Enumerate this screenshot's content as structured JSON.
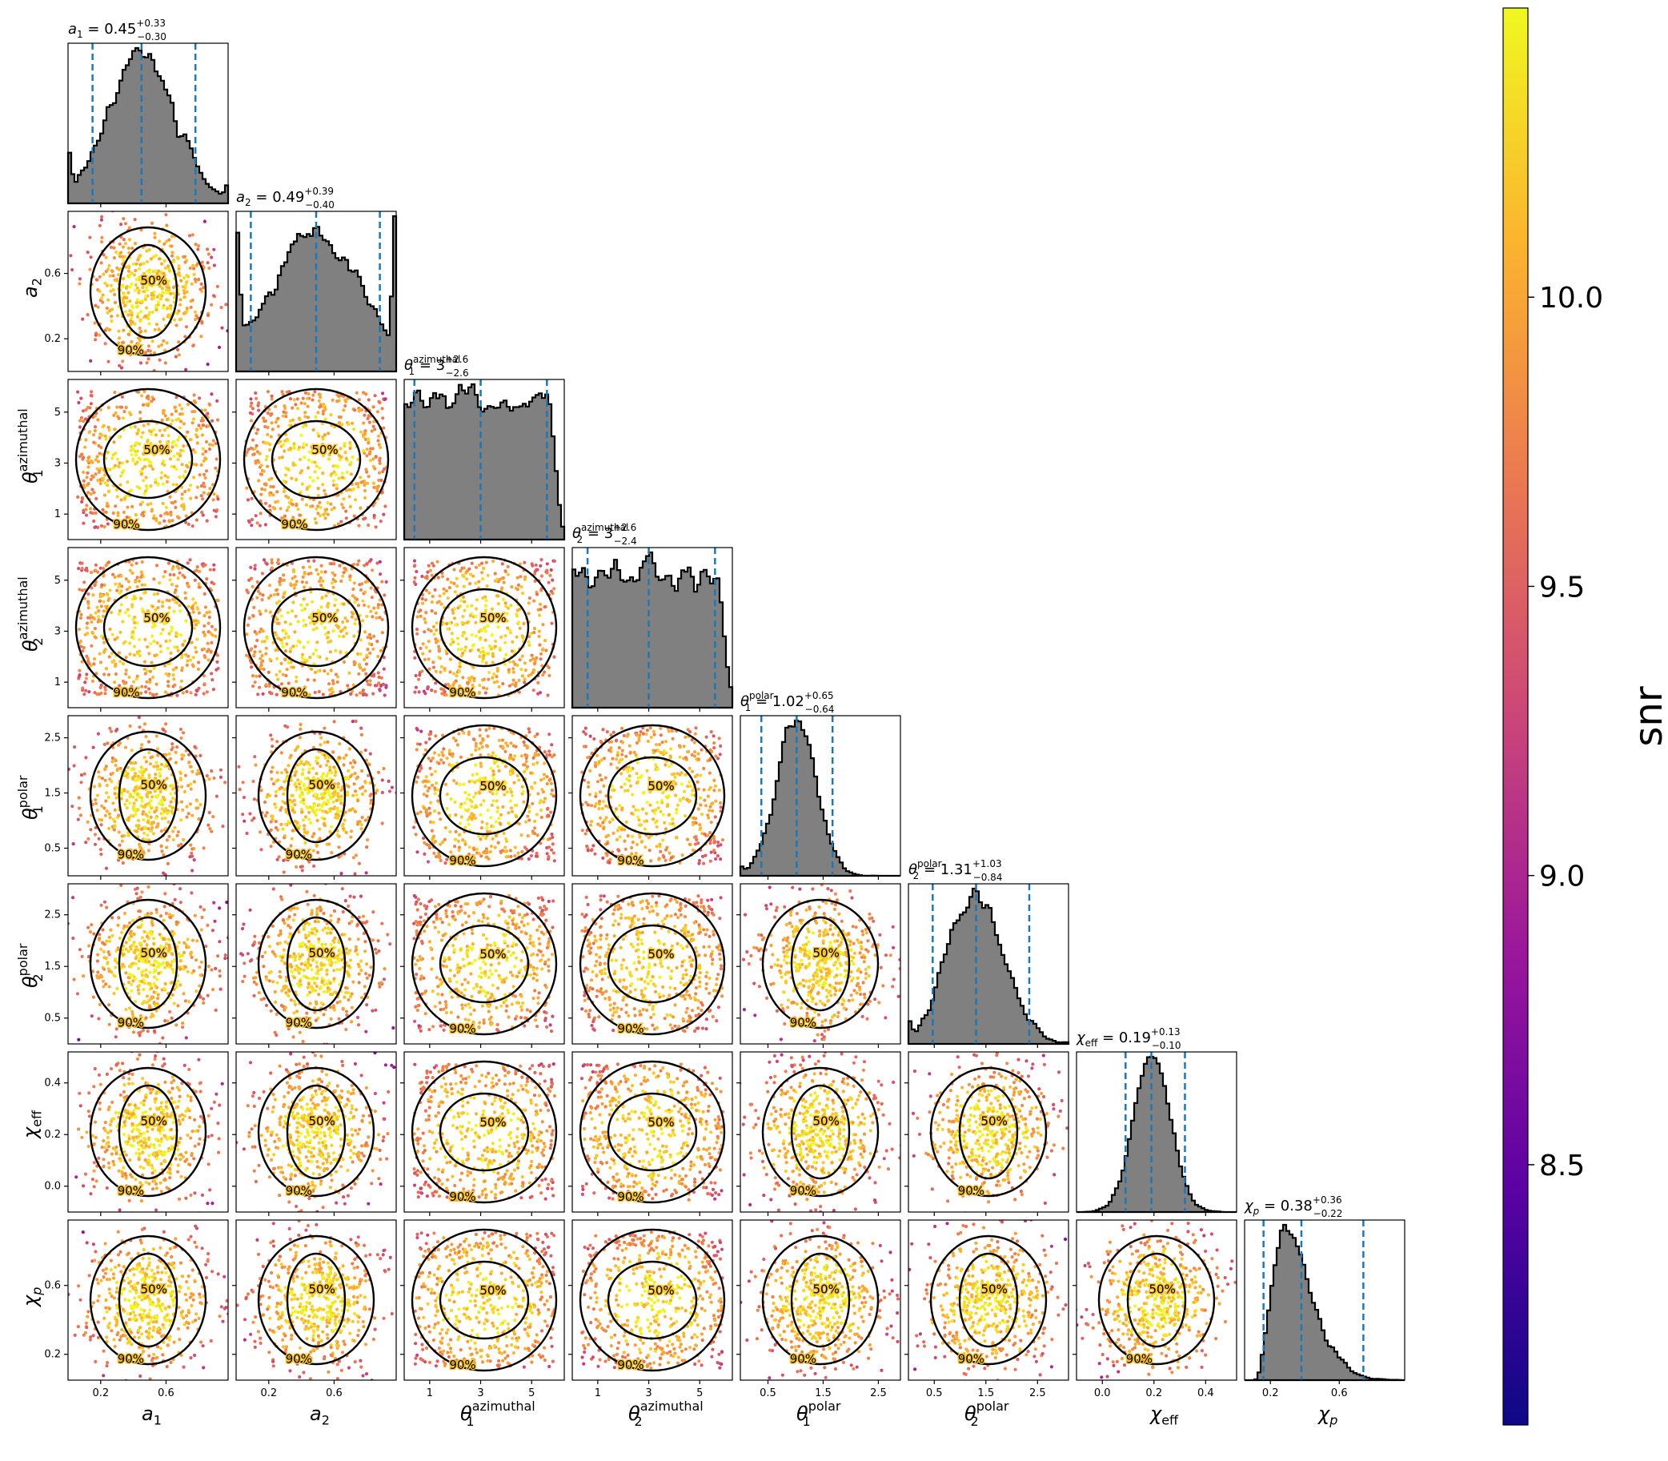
{
  "chart_data": {
    "type": "scatter",
    "params": [
      {
        "key": "a1",
        "label": "a",
        "sub": "1",
        "sup": "",
        "range": [
          0.0,
          0.98
        ],
        "ticks": [
          0.2,
          0.6
        ],
        "tick_labels": [
          "0.2",
          "0.6"
        ],
        "med": 0.45,
        "plus": "0.33",
        "minus": "0.30",
        "med_label": "0.45",
        "sd": 0.2,
        "shape": "normal",
        "cdir": "v"
      },
      {
        "key": "a2",
        "label": "a",
        "sub": "2",
        "sup": "",
        "range": [
          0.0,
          0.98
        ],
        "ticks": [
          0.2,
          0.6
        ],
        "tick_labels": [
          "0.2",
          "0.6"
        ],
        "med": 0.49,
        "plus": "0.39",
        "minus": "0.40",
        "med_label": "0.49",
        "sd": 0.27,
        "shape": "tri",
        "cdir": "r"
      },
      {
        "key": "theta1_az",
        "label": "θ",
        "sub": "1",
        "sup": "azimuthal",
        "range": [
          0,
          6.28
        ],
        "ticks": [
          1,
          3,
          5
        ],
        "tick_labels": [
          "1",
          "3",
          "5"
        ],
        "med": 3.0,
        "plus": "2.6",
        "minus": "2.6",
        "med_label": "3",
        "sd": 1.6,
        "shape": "flat",
        "cdir": "v"
      },
      {
        "key": "theta2_az",
        "label": "θ",
        "sub": "2",
        "sup": "azimuthal",
        "range": [
          0,
          6.28
        ],
        "ticks": [
          1,
          3,
          5
        ],
        "tick_labels": [
          "1",
          "3",
          "5"
        ],
        "med": 3.0,
        "plus": "2.6",
        "minus": "2.4",
        "med_label": "3",
        "sd": 1.6,
        "shape": "flat",
        "cdir": "r"
      },
      {
        "key": "theta1_pol",
        "label": "θ",
        "sub": "1",
        "sup": "polar",
        "range": [
          0,
          2.9
        ],
        "ticks": [
          0.5,
          1.5,
          2.5
        ],
        "tick_labels": [
          "0.5",
          "1.5",
          "2.5"
        ],
        "med": 1.02,
        "plus": "0.65",
        "minus": "0.64",
        "med_label": "1.02",
        "sd": 0.36,
        "shape": "normal",
        "cdir": "h"
      },
      {
        "key": "theta2_pol",
        "label": "θ",
        "sub": "2",
        "sup": "polar",
        "range": [
          0,
          3.1
        ],
        "ticks": [
          0.5,
          1.5,
          2.5
        ],
        "tick_labels": [
          "0.5",
          "1.5",
          "2.5"
        ],
        "med": 1.31,
        "plus": "1.03",
        "minus": "0.84",
        "med_label": "1.31",
        "sd": 0.55,
        "shape": "normal",
        "cdir": "r"
      },
      {
        "key": "chi_eff",
        "label": "χ",
        "sub": "eff",
        "sup": "",
        "range": [
          -0.1,
          0.52
        ],
        "ticks": [
          0.0,
          0.2,
          0.4
        ],
        "tick_labels": [
          "0.0",
          "0.2",
          "0.4"
        ],
        "med": 0.19,
        "plus": "0.13",
        "minus": "0.10",
        "med_label": "0.19",
        "sd": 0.07,
        "shape": "normal",
        "cdir": "h"
      },
      {
        "key": "chi_p",
        "label": "χ",
        "sub": "p",
        "sup": "",
        "range": [
          0.05,
          0.98
        ],
        "ticks": [
          0.2,
          0.6
        ],
        "tick_labels": [
          "0.2",
          "0.6"
        ],
        "med": 0.38,
        "plus": "0.36",
        "minus": "0.22",
        "med_label": "0.38",
        "sd": 0.17,
        "shape": "skew",
        "cdir": "v"
      }
    ],
    "contour_levels": [
      "50%",
      "90%"
    ],
    "colorbar": {
      "label": "snr",
      "cmap": "plasma",
      "range": [
        8.05,
        10.5
      ],
      "ticks": [
        8.5,
        9.0,
        9.5,
        10.0
      ],
      "tick_labels": [
        "8.5",
        "9.0",
        "9.5",
        "10.0"
      ]
    },
    "colors": {
      "hist_fill": "#808080",
      "hist_edge": "#000000",
      "quantile_line": "#1f77b4",
      "contour": "#000000",
      "plasma": [
        "#0d0887",
        "#5b02a3",
        "#9a179b",
        "#cb4678",
        "#eb7852",
        "#fbb32f",
        "#eff821"
      ]
    }
  }
}
